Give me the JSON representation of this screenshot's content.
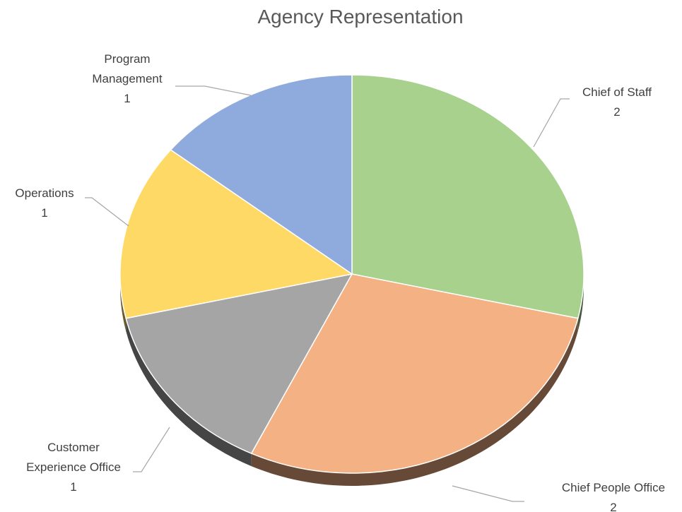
{
  "chart_data": {
    "type": "pie",
    "title": "Agency Representation",
    "categories": [
      "Chief of Staff",
      "Chief People Office",
      "Customer Experience Office",
      "Operations",
      "Program Management"
    ],
    "values": [
      2,
      2,
      1,
      1,
      1
    ],
    "colors": [
      "#a9d18e",
      "#f4b183",
      "#a5a5a5",
      "#ffd966",
      "#8faadc"
    ]
  }
}
